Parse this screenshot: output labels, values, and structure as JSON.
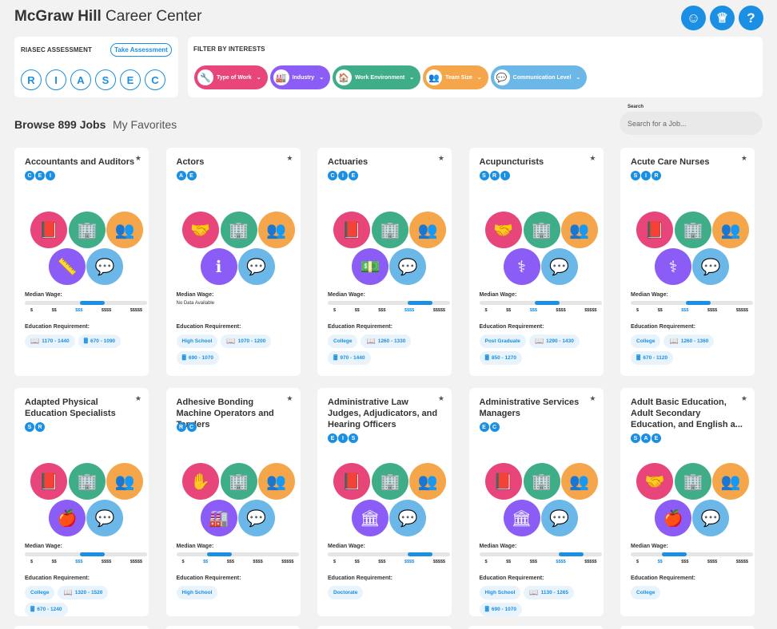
{
  "header": {
    "brand": "McGraw Hill",
    "product": "Career Center",
    "buttons": [
      {
        "name": "accessibility-icon",
        "glyph": "☺"
      },
      {
        "name": "trophy-icon",
        "glyph": "♕"
      },
      {
        "name": "help-icon",
        "glyph": "?"
      }
    ]
  },
  "riasec": {
    "label": "RIASEC ASSESSMENT",
    "take_label": "Take Assessment",
    "letters": [
      "R",
      "I",
      "A",
      "S",
      "E",
      "C"
    ]
  },
  "filters": {
    "label": "FILTER BY INTERESTS",
    "items": [
      {
        "label": "Type of Work",
        "color": "#e8457a",
        "icon": "🔧"
      },
      {
        "label": "Industry",
        "color": "#8b5cf6",
        "icon": "🏭"
      },
      {
        "label": "Work Environment",
        "color": "#3fae88",
        "icon": "🏠"
      },
      {
        "label": "Team Size",
        "color": "#f5a64a",
        "icon": "👥"
      },
      {
        "label": "Communication Level",
        "color": "#6bb8e8",
        "icon": "💬"
      }
    ]
  },
  "browse": {
    "title": "Browse 899 Jobs",
    "favorites": "My Favorites",
    "search_label": "Search",
    "search_placeholder": "Search for a Job..."
  },
  "labels": {
    "wage": "Median Wage:",
    "education": "Education Requirement:",
    "wage_ticks": [
      "$",
      "$$",
      "$$$",
      "$$$$",
      "$$$$$"
    ],
    "no_data": "No Data Available"
  },
  "colors": {
    "pink": "#e8457a",
    "green": "#3fae88",
    "orange": "#f5a64a",
    "purple": "#8b5cf6",
    "sky": "#6bb8e8",
    "accent": "#1a8fe3"
  },
  "jobs": [
    {
      "title": "Accountants and Auditors",
      "codes": [
        "C",
        "E",
        "I"
      ],
      "icons": [
        "📕",
        "🏢",
        "👥",
        "📏",
        "💬"
      ],
      "wage_level": 3,
      "edu": [
        {
          "icon": "📖",
          "text": "1170 - 1440"
        },
        {
          "icon": "🖩",
          "text": "670 - 1090"
        }
      ]
    },
    {
      "title": "Actors",
      "codes": [
        "A",
        "E"
      ],
      "icons": [
        "🤝",
        "🏢",
        "👥",
        "ℹ",
        "💬"
      ],
      "wage_level": 0,
      "edu": [
        {
          "icon": "",
          "text": "High School"
        },
        {
          "icon": "📖",
          "text": "1070 - 1200"
        },
        {
          "icon": "🖩",
          "text": "690 - 1070"
        }
      ]
    },
    {
      "title": "Actuaries",
      "codes": [
        "C",
        "I",
        "E"
      ],
      "icons": [
        "📕",
        "🏢",
        "👥",
        "💵",
        "💬"
      ],
      "wage_level": 4,
      "edu": [
        {
          "icon": "",
          "text": "College"
        },
        {
          "icon": "📖",
          "text": "1260 - 1330"
        },
        {
          "icon": "🖩",
          "text": "970 - 1440"
        }
      ]
    },
    {
      "title": "Acupuncturists",
      "codes": [
        "S",
        "R",
        "I"
      ],
      "icons": [
        "🤝",
        "🏢",
        "👥",
        "⚕",
        "💬"
      ],
      "wage_level": 3,
      "edu": [
        {
          "icon": "",
          "text": "Post Graduate"
        },
        {
          "icon": "📖",
          "text": "1290 - 1430"
        },
        {
          "icon": "🖩",
          "text": "850 - 1270"
        }
      ]
    },
    {
      "title": "Acute Care Nurses",
      "codes": [
        "S",
        "I",
        "R"
      ],
      "icons": [
        "📕",
        "🏢",
        "👥",
        "⚕",
        "💬"
      ],
      "wage_level": 3,
      "edu": [
        {
          "icon": "",
          "text": "College"
        },
        {
          "icon": "📖",
          "text": "1260 - 1360"
        },
        {
          "icon": "🖩",
          "text": "670 - 1120"
        }
      ]
    },
    {
      "title": "Adapted Physical Education Specialists",
      "codes": [
        "S",
        "R"
      ],
      "icons": [
        "📕",
        "🏢",
        "👥",
        "🍎",
        "💬"
      ],
      "wage_level": 3,
      "edu": [
        {
          "icon": "",
          "text": "College"
        },
        {
          "icon": "📖",
          "text": "1320 - 1520"
        },
        {
          "icon": "🖩",
          "text": "670 - 1240"
        }
      ]
    },
    {
      "title": "Adhesive Bonding Machine Operators and Tenders",
      "codes": [
        "R",
        "C"
      ],
      "icons": [
        "✋",
        "🏢",
        "👥",
        "🏭",
        "💬"
      ],
      "wage_level": 2,
      "edu": [
        {
          "icon": "",
          "text": "High School"
        }
      ]
    },
    {
      "title": "Administrative Law Judges, Adjudicators, and Hearing Officers",
      "codes": [
        "E",
        "I",
        "S"
      ],
      "icons": [
        "📕",
        "🏢",
        "👥",
        "🏛",
        "💬"
      ],
      "wage_level": 4,
      "edu": [
        {
          "icon": "",
          "text": "Doctorate"
        }
      ]
    },
    {
      "title": "Administrative Services Managers",
      "codes": [
        "E",
        "C"
      ],
      "icons": [
        "📕",
        "🏢",
        "👥",
        "🏛",
        "💬"
      ],
      "wage_level": 4,
      "edu": [
        {
          "icon": "",
          "text": "High School"
        },
        {
          "icon": "📖",
          "text": "1130 - 1265"
        },
        {
          "icon": "🖩",
          "text": "690 - 1070"
        }
      ]
    },
    {
      "title": "Adult Basic Education, Adult Secondary Education, and English a...",
      "codes": [
        "S",
        "A",
        "E"
      ],
      "icons": [
        "🤝",
        "🏢",
        "👥",
        "🍎",
        "💬"
      ],
      "wage_level": 2,
      "edu": [
        {
          "icon": "",
          "text": "College"
        }
      ]
    }
  ]
}
